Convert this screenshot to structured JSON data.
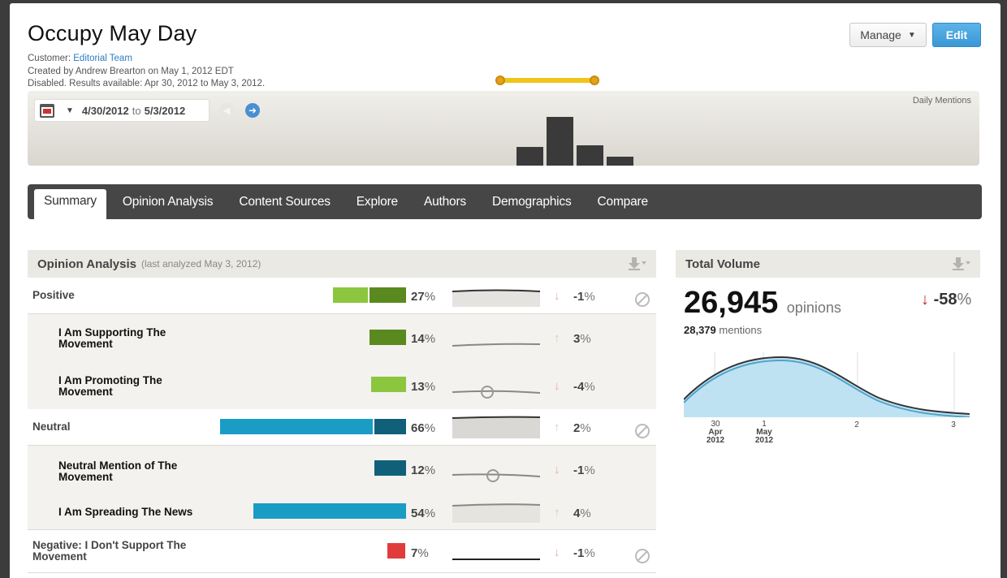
{
  "header": {
    "title": "Occupy May Day",
    "customer_label": "Customer:",
    "customer_name": "Editorial Team",
    "created": "Created by Andrew Brearton on May 1, 2012 EDT",
    "status": "Disabled. Results available: Apr 30, 2012 to May 3, 2012.",
    "manage_label": "Manage",
    "edit_label": "Edit"
  },
  "timeline": {
    "date_from": "4/30/2012",
    "to_word": "to",
    "date_to": "5/3/2012",
    "label": "Daily Mentions",
    "daily_levels": [
      0.38,
      1.0,
      0.42,
      0.18
    ]
  },
  "tabs": [
    "Summary",
    "Opinion Analysis",
    "Content Sources",
    "Explore",
    "Authors",
    "Demographics",
    "Compare"
  ],
  "opinion": {
    "title": "Opinion Analysis",
    "subtitle": "(last analyzed May 3, 2012)",
    "rows": [
      {
        "label": "Positive",
        "pct": "27",
        "change": "-1",
        "dir": "down"
      },
      {
        "label": "I Am Supporting The Movement",
        "pct": "14",
        "change": "3",
        "dir": "up"
      },
      {
        "label": "I Am Promoting The Movement",
        "pct": "13",
        "change": "-4",
        "dir": "down"
      },
      {
        "label": "Neutral",
        "pct": "66",
        "change": "2",
        "dir": "up"
      },
      {
        "label": "Neutral Mention of The Movement",
        "pct": "12",
        "change": "-1",
        "dir": "down"
      },
      {
        "label": "I Am Spreading The News",
        "pct": "54",
        "change": "4",
        "dir": "up"
      },
      {
        "label": "Negative: I Don't Support The Movement",
        "pct": "7",
        "change": "-1",
        "dir": "down"
      }
    ],
    "pct_suffix": "%"
  },
  "volume": {
    "title": "Total Volume",
    "opinions": "26,945",
    "opinions_label": "opinions",
    "mentions": "28,379",
    "mentions_label": "mentions",
    "change": "-58",
    "pct_suffix": "%",
    "axis": [
      {
        "day": "30",
        "month": "Apr",
        "year": "2012"
      },
      {
        "day": "1",
        "month": "May",
        "year": "2012"
      },
      {
        "day": "2",
        "month": "",
        "year": ""
      },
      {
        "day": "3",
        "month": "",
        "year": ""
      }
    ]
  },
  "colors": {
    "positive_light": "#8cc63f",
    "positive_dark": "#5a8a1f",
    "neutral_light": "#1a9cc4",
    "neutral_dark": "#11607a",
    "negative": "#e03c3c",
    "up_arrow": "#b9dfb0",
    "down_arrow": "#e7a8aa"
  }
}
